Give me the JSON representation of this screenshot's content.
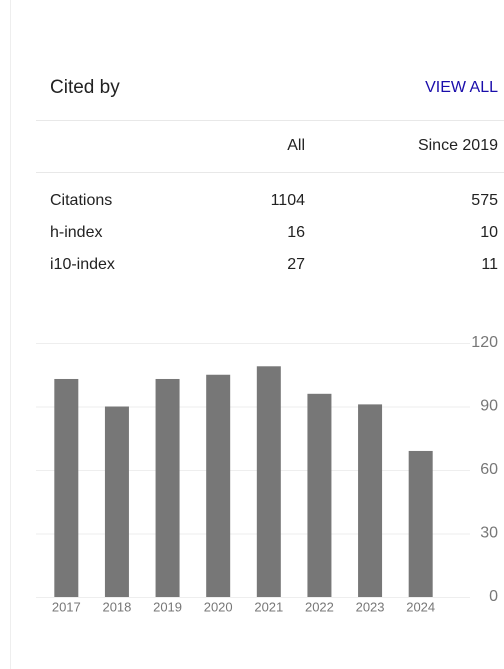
{
  "header": {
    "title": "Cited by",
    "link": "VIEW ALL"
  },
  "table": {
    "columns": [
      "",
      "All",
      "Since 2019"
    ],
    "rows": [
      [
        "Citations",
        "1104",
        "575"
      ],
      [
        "h-index",
        "16",
        "10"
      ],
      [
        "i10-index",
        "27",
        "11"
      ]
    ]
  },
  "chart_data": {
    "type": "bar",
    "categories": [
      "2017",
      "2018",
      "2019",
      "2020",
      "2021",
      "2022",
      "2023",
      "2024"
    ],
    "values": [
      103,
      90,
      103,
      105,
      109,
      96,
      91,
      69
    ],
    "color": "#777777",
    "ylim": [
      0,
      120
    ],
    "yticks": [
      0,
      30,
      60,
      90,
      120
    ],
    "grid": true
  }
}
